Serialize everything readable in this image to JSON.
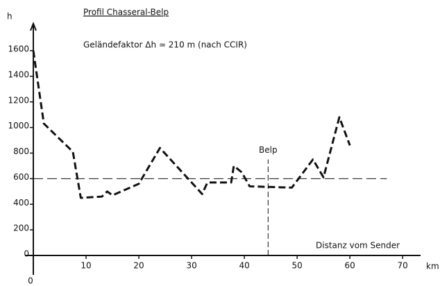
{
  "chart_data": {
    "type": "line",
    "title": "Profil Chasseral-Belp",
    "subtitle": "Geländefaktor Δh ≃ 210 m (nach CCIR)",
    "x_label": "Distanz vom Sender",
    "x_unit": "km",
    "y_label": "h",
    "x": [
      0,
      2,
      7.5,
      9,
      13,
      14,
      15,
      20,
      24,
      32,
      33,
      37.5,
      38,
      39.5,
      41,
      49,
      53,
      55,
      58,
      60
    ],
    "series": [
      {
        "color": "#111111",
        "values": [
          1600,
          1030,
          810,
          450,
          460,
          500,
          470,
          560,
          840,
          480,
          570,
          570,
          700,
          650,
          540,
          530,
          750,
          610,
          1080,
          860
        ]
      }
    ],
    "xlim": [
      0,
      73
    ],
    "ylim": [
      0,
      1600
    ],
    "xticks": [
      0,
      10,
      20,
      30,
      40,
      50,
      60,
      70
    ],
    "yticks": [
      0,
      200,
      400,
      600,
      800,
      1000,
      1200,
      1400,
      1600
    ],
    "hline": {
      "y": 600,
      "x": [
        0,
        67
      ]
    },
    "marker": {
      "label": "Belp",
      "x": 44.5,
      "y": [
        0,
        750
      ]
    }
  }
}
